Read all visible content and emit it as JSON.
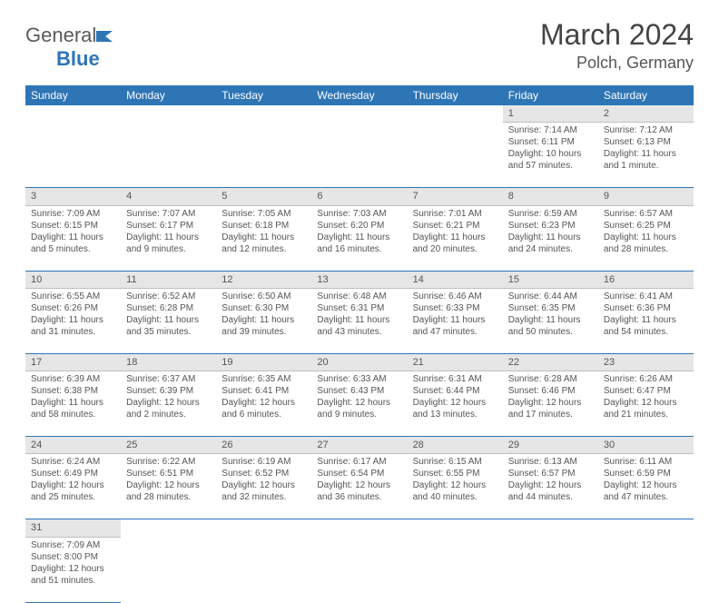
{
  "logo": {
    "word1": "General",
    "word2": "Blue"
  },
  "title": "March 2024",
  "location": "Polch, Germany",
  "colors": {
    "brand": "#2e75b6",
    "daybg": "#e6e6e6",
    "text": "#555555"
  },
  "dayNames": [
    "Sunday",
    "Monday",
    "Tuesday",
    "Wednesday",
    "Thursday",
    "Friday",
    "Saturday"
  ],
  "weeks": [
    [
      null,
      null,
      null,
      null,
      null,
      {
        "n": "1",
        "sr": "Sunrise: 7:14 AM",
        "ss": "Sunset: 6:11 PM",
        "dl1": "Daylight: 10 hours",
        "dl2": "and 57 minutes."
      },
      {
        "n": "2",
        "sr": "Sunrise: 7:12 AM",
        "ss": "Sunset: 6:13 PM",
        "dl1": "Daylight: 11 hours",
        "dl2": "and 1 minute."
      }
    ],
    [
      {
        "n": "3",
        "sr": "Sunrise: 7:09 AM",
        "ss": "Sunset: 6:15 PM",
        "dl1": "Daylight: 11 hours",
        "dl2": "and 5 minutes."
      },
      {
        "n": "4",
        "sr": "Sunrise: 7:07 AM",
        "ss": "Sunset: 6:17 PM",
        "dl1": "Daylight: 11 hours",
        "dl2": "and 9 minutes."
      },
      {
        "n": "5",
        "sr": "Sunrise: 7:05 AM",
        "ss": "Sunset: 6:18 PM",
        "dl1": "Daylight: 11 hours",
        "dl2": "and 12 minutes."
      },
      {
        "n": "6",
        "sr": "Sunrise: 7:03 AM",
        "ss": "Sunset: 6:20 PM",
        "dl1": "Daylight: 11 hours",
        "dl2": "and 16 minutes."
      },
      {
        "n": "7",
        "sr": "Sunrise: 7:01 AM",
        "ss": "Sunset: 6:21 PM",
        "dl1": "Daylight: 11 hours",
        "dl2": "and 20 minutes."
      },
      {
        "n": "8",
        "sr": "Sunrise: 6:59 AM",
        "ss": "Sunset: 6:23 PM",
        "dl1": "Daylight: 11 hours",
        "dl2": "and 24 minutes."
      },
      {
        "n": "9",
        "sr": "Sunrise: 6:57 AM",
        "ss": "Sunset: 6:25 PM",
        "dl1": "Daylight: 11 hours",
        "dl2": "and 28 minutes."
      }
    ],
    [
      {
        "n": "10",
        "sr": "Sunrise: 6:55 AM",
        "ss": "Sunset: 6:26 PM",
        "dl1": "Daylight: 11 hours",
        "dl2": "and 31 minutes."
      },
      {
        "n": "11",
        "sr": "Sunrise: 6:52 AM",
        "ss": "Sunset: 6:28 PM",
        "dl1": "Daylight: 11 hours",
        "dl2": "and 35 minutes."
      },
      {
        "n": "12",
        "sr": "Sunrise: 6:50 AM",
        "ss": "Sunset: 6:30 PM",
        "dl1": "Daylight: 11 hours",
        "dl2": "and 39 minutes."
      },
      {
        "n": "13",
        "sr": "Sunrise: 6:48 AM",
        "ss": "Sunset: 6:31 PM",
        "dl1": "Daylight: 11 hours",
        "dl2": "and 43 minutes."
      },
      {
        "n": "14",
        "sr": "Sunrise: 6:46 AM",
        "ss": "Sunset: 6:33 PM",
        "dl1": "Daylight: 11 hours",
        "dl2": "and 47 minutes."
      },
      {
        "n": "15",
        "sr": "Sunrise: 6:44 AM",
        "ss": "Sunset: 6:35 PM",
        "dl1": "Daylight: 11 hours",
        "dl2": "and 50 minutes."
      },
      {
        "n": "16",
        "sr": "Sunrise: 6:41 AM",
        "ss": "Sunset: 6:36 PM",
        "dl1": "Daylight: 11 hours",
        "dl2": "and 54 minutes."
      }
    ],
    [
      {
        "n": "17",
        "sr": "Sunrise: 6:39 AM",
        "ss": "Sunset: 6:38 PM",
        "dl1": "Daylight: 11 hours",
        "dl2": "and 58 minutes."
      },
      {
        "n": "18",
        "sr": "Sunrise: 6:37 AM",
        "ss": "Sunset: 6:39 PM",
        "dl1": "Daylight: 12 hours",
        "dl2": "and 2 minutes."
      },
      {
        "n": "19",
        "sr": "Sunrise: 6:35 AM",
        "ss": "Sunset: 6:41 PM",
        "dl1": "Daylight: 12 hours",
        "dl2": "and 6 minutes."
      },
      {
        "n": "20",
        "sr": "Sunrise: 6:33 AM",
        "ss": "Sunset: 6:43 PM",
        "dl1": "Daylight: 12 hours",
        "dl2": "and 9 minutes."
      },
      {
        "n": "21",
        "sr": "Sunrise: 6:31 AM",
        "ss": "Sunset: 6:44 PM",
        "dl1": "Daylight: 12 hours",
        "dl2": "and 13 minutes."
      },
      {
        "n": "22",
        "sr": "Sunrise: 6:28 AM",
        "ss": "Sunset: 6:46 PM",
        "dl1": "Daylight: 12 hours",
        "dl2": "and 17 minutes."
      },
      {
        "n": "23",
        "sr": "Sunrise: 6:26 AM",
        "ss": "Sunset: 6:47 PM",
        "dl1": "Daylight: 12 hours",
        "dl2": "and 21 minutes."
      }
    ],
    [
      {
        "n": "24",
        "sr": "Sunrise: 6:24 AM",
        "ss": "Sunset: 6:49 PM",
        "dl1": "Daylight: 12 hours",
        "dl2": "and 25 minutes."
      },
      {
        "n": "25",
        "sr": "Sunrise: 6:22 AM",
        "ss": "Sunset: 6:51 PM",
        "dl1": "Daylight: 12 hours",
        "dl2": "and 28 minutes."
      },
      {
        "n": "26",
        "sr": "Sunrise: 6:19 AM",
        "ss": "Sunset: 6:52 PM",
        "dl1": "Daylight: 12 hours",
        "dl2": "and 32 minutes."
      },
      {
        "n": "27",
        "sr": "Sunrise: 6:17 AM",
        "ss": "Sunset: 6:54 PM",
        "dl1": "Daylight: 12 hours",
        "dl2": "and 36 minutes."
      },
      {
        "n": "28",
        "sr": "Sunrise: 6:15 AM",
        "ss": "Sunset: 6:55 PM",
        "dl1": "Daylight: 12 hours",
        "dl2": "and 40 minutes."
      },
      {
        "n": "29",
        "sr": "Sunrise: 6:13 AM",
        "ss": "Sunset: 6:57 PM",
        "dl1": "Daylight: 12 hours",
        "dl2": "and 44 minutes."
      },
      {
        "n": "30",
        "sr": "Sunrise: 6:11 AM",
        "ss": "Sunset: 6:59 PM",
        "dl1": "Daylight: 12 hours",
        "dl2": "and 47 minutes."
      }
    ],
    [
      {
        "n": "31",
        "sr": "Sunrise: 7:09 AM",
        "ss": "Sunset: 8:00 PM",
        "dl1": "Daylight: 12 hours",
        "dl2": "and 51 minutes."
      },
      null,
      null,
      null,
      null,
      null,
      null
    ]
  ]
}
